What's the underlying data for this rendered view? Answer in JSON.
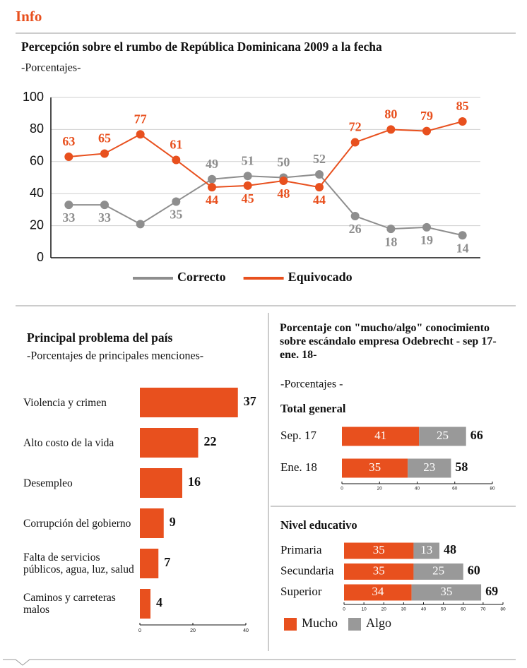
{
  "header": {
    "title": "Info"
  },
  "chart_data": [
    {
      "type": "line",
      "title": "Percepción sobre el rumbo de República Dominicana 2009 a la fecha",
      "subtitle": "-Porcentajes-",
      "categories": [
        null,
        null,
        null,
        null,
        null,
        null,
        null,
        null,
        null,
        null,
        null,
        null
      ],
      "series": [
        {
          "name": "Correcto",
          "color": "#8e8e8e",
          "values": [
            33,
            33,
            21,
            35,
            49,
            51,
            50,
            52,
            26,
            18,
            19,
            14
          ],
          "value_labels": [
            "33",
            "33",
            null,
            "35",
            "49",
            "51",
            "50",
            "52",
            "26",
            "18",
            "19",
            "14"
          ]
        },
        {
          "name": "Equivocado",
          "color": "#e8501e",
          "values": [
            63,
            65,
            77,
            61,
            44,
            45,
            48,
            44,
            72,
            80,
            79,
            85
          ],
          "value_labels": [
            "63",
            "65",
            "77",
            "61",
            "44",
            "45",
            "48",
            "44",
            "72",
            "80",
            "79",
            "85"
          ]
        }
      ],
      "ylim": [
        0,
        100
      ],
      "yticks": [
        0,
        20,
        40,
        60,
        80,
        100
      ],
      "grid": true,
      "legend": "bottom"
    },
    {
      "type": "hbar",
      "title": "Principal problema del país",
      "subtitle": "-Porcentajes de principales menciones-",
      "categories": [
        "Violencia y crimen",
        "Alto costo de la vida",
        "Desempleo",
        "Corrupción del gobierno",
        "Falta de servicios públicos, agua, luz, salud",
        "Caminos y carreteras malos"
      ],
      "values": [
        37,
        22,
        16,
        9,
        7,
        4
      ],
      "color": "#e8501e",
      "xlim": [
        0,
        40
      ],
      "xticks": [
        0,
        20,
        40
      ]
    },
    {
      "type": "stacked-hbar",
      "title": "Porcentaje con \"mucho/algo\" conocimiento sobre escándalo empresa Odebrecht - sep 17- ene. 18-",
      "subtitle": "-Porcentajes -",
      "section": "Total general",
      "categories": [
        "Sep. 17",
        "Ene. 18"
      ],
      "series": [
        {
          "name": "Mucho",
          "color": "#e8501e",
          "values": [
            41,
            35
          ]
        },
        {
          "name": "Algo",
          "color": "#999999",
          "values": [
            25,
            23
          ]
        }
      ],
      "totals": [
        66,
        58
      ],
      "xlim": [
        0,
        80
      ],
      "xticks": [
        0,
        20,
        40,
        60,
        80
      ]
    },
    {
      "type": "stacked-hbar",
      "section": "Nivel educativo",
      "categories": [
        "Primaria",
        "Secundaria",
        "Superior"
      ],
      "series": [
        {
          "name": "Mucho",
          "color": "#e8501e",
          "values": [
            35,
            35,
            34
          ]
        },
        {
          "name": "Algo",
          "color": "#999999",
          "values": [
            13,
            25,
            35
          ]
        }
      ],
      "totals": [
        48,
        60,
        69
      ],
      "xlim": [
        0,
        80
      ],
      "xticks": [
        0,
        10,
        20,
        30,
        40,
        50,
        60,
        70,
        80
      ],
      "legend": "bottom-left"
    }
  ]
}
